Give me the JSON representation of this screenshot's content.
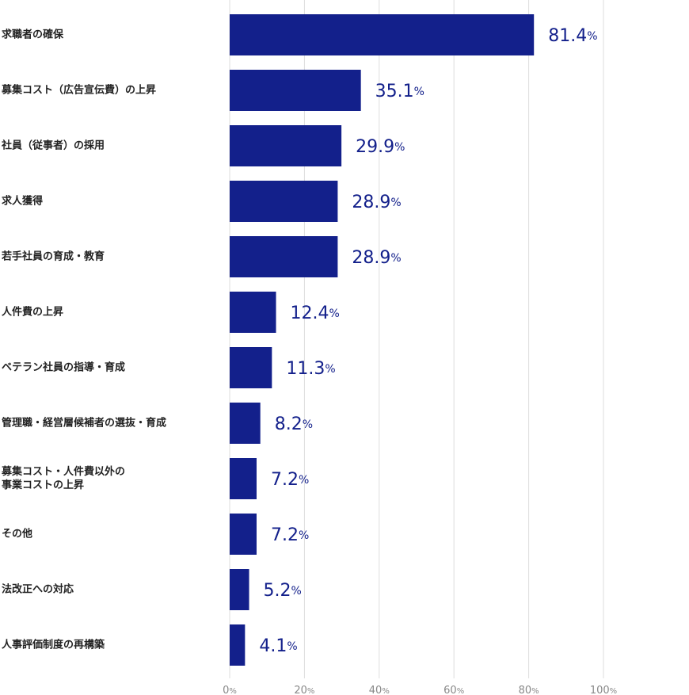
{
  "chart_data": {
    "type": "bar",
    "orientation": "horizontal",
    "color": "#13208b",
    "categories": [
      "求職者の確保",
      "募集コスト（広告宣伝費）の上昇",
      "社員（従事者）の採用",
      "求人獲得",
      "若手社員の育成・教育",
      "人件費の上昇",
      "ベテラン社員の指導・育成",
      "管理職・経営層候補者の選抜・育成",
      "募集コスト・人件費以外の\n事業コストの上昇",
      "その他",
      "法改正への対応",
      "人事評価制度の再構築"
    ],
    "values": [
      81.4,
      35.1,
      29.9,
      28.9,
      28.9,
      12.4,
      11.3,
      8.2,
      7.2,
      7.2,
      5.2,
      4.1
    ],
    "value_labels": [
      "81.4%",
      "35.1%",
      "29.9%",
      "28.9%",
      "28.9%",
      "12.4%",
      "11.3%",
      "8.2%",
      "7.2%",
      "7.2%",
      "5.2%",
      "4.1%"
    ],
    "xlim": [
      0,
      100
    ],
    "xticks": [
      {
        "value": 0,
        "label": "0%"
      },
      {
        "value": 20,
        "label": "20%"
      },
      {
        "value": 40,
        "label": "40%"
      },
      {
        "value": 60,
        "label": "60%"
      },
      {
        "value": 80,
        "label": "80%"
      },
      {
        "value": 100,
        "label": "100%"
      }
    ],
    "grid": true
  }
}
